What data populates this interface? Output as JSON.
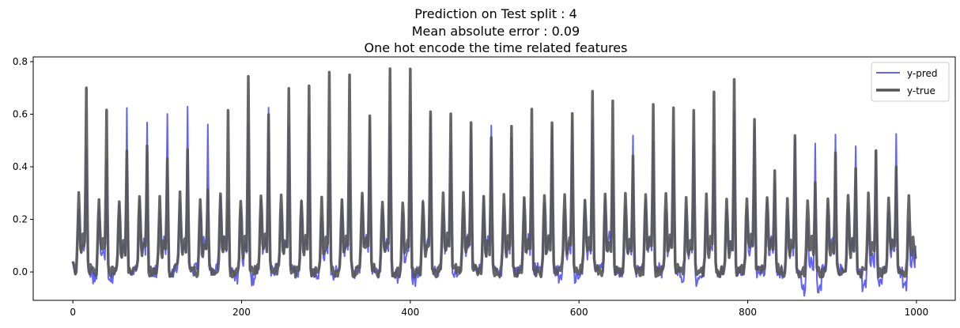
{
  "chart_data": {
    "type": "line",
    "title_lines": [
      "Prediction on Test split : 4",
      "Mean absolute error : 0.09",
      "One hot encode the time related features"
    ],
    "xlabel": "",
    "ylabel": "",
    "xlim": [
      -47,
      1046
    ],
    "ylim": [
      -0.108,
      0.818
    ],
    "xticks": [
      0,
      200,
      400,
      600,
      800,
      1000
    ],
    "yticks": [
      0.0,
      0.2,
      0.4,
      0.6,
      0.8
    ],
    "xtick_labels": [
      "0",
      "200",
      "400",
      "600",
      "800",
      "1000"
    ],
    "ytick_labels": [
      "0.0",
      "0.2",
      "0.4",
      "0.6",
      "0.8"
    ],
    "grid": false,
    "legend_position": "top-right",
    "n_points": 1000,
    "period_points": 24,
    "series": [
      {
        "name": "y-pred",
        "color": "#6464f0",
        "stroke_width": 2,
        "start_value": 0.04,
        "end_value": 0.1,
        "daily_peaks": [
          0.47,
          0.41,
          0.59,
          0.56,
          0.59,
          0.6,
          0.54,
          0.26,
          0.54,
          0.61,
          0.54,
          0.58,
          0.44,
          0.43,
          0.57,
          0.54,
          0.59,
          0.59,
          0.5,
          0.53,
          0.53,
          0.52,
          0.4,
          0.55,
          0.58,
          0.55,
          0.42,
          0.53,
          0.49,
          0.5,
          0.47,
          0.48,
          0.59,
          0.55,
          0.36,
          0.5,
          0.48,
          0.52,
          0.49,
          0.43,
          0.52,
          0.45,
          0.49,
          0.45,
          0.49,
          0.53,
          0.47,
          0.52
        ],
        "daily_troughs": [
          0.0,
          -0.02,
          0.0,
          0.0,
          0.0,
          0.01,
          0.01,
          0.02,
          -0.03,
          0.0,
          0.01,
          0.0,
          -0.02,
          0.0,
          0.01,
          0.0,
          -0.03,
          0.0,
          0.0,
          0.01,
          0.01,
          0.0,
          0.01,
          0.0,
          -0.02,
          0.0,
          0.01,
          0.0,
          0.02,
          0.0,
          -0.03,
          0.0,
          0.0,
          0.0,
          0.0,
          0.0,
          -0.07,
          0.01,
          0.0,
          -0.05,
          0.0,
          -0.06,
          0.0,
          0.0,
          -0.03,
          0.0,
          0.0,
          0.0
        ],
        "secondary_peak": 0.25,
        "noise_amplitude": 0.05
      },
      {
        "name": "y-true",
        "color": "#555555",
        "stroke_width": 3.5,
        "start_value": 0.04,
        "end_value": 0.05,
        "daily_peaks": [
          0.68,
          0.6,
          0.44,
          0.46,
          0.43,
          0.47,
          0.3,
          0.61,
          0.74,
          0.58,
          0.69,
          0.68,
          0.75,
          0.76,
          0.58,
          0.76,
          0.78,
          0.62,
          0.61,
          0.55,
          0.51,
          0.56,
          0.6,
          0.57,
          0.6,
          0.69,
          0.64,
          0.44,
          0.64,
          0.62,
          0.62,
          0.67,
          0.71,
          0.58,
          0.39,
          0.52,
          0.35,
          0.43,
          0.4,
          0.45,
          0.39,
          0.36,
          0.32,
          0.34,
          0.41,
          0.31,
          0.39,
          0.33
        ],
        "daily_troughs": [
          0.01,
          0.0,
          0.0,
          0.0,
          0.0,
          0.01,
          0.0,
          0.0,
          0.0,
          0.01,
          0.01,
          0.0,
          0.0,
          0.0,
          0.01,
          0.0,
          0.0,
          0.0,
          0.01,
          0.01,
          0.0,
          0.0,
          0.0,
          0.0,
          0.01,
          0.01,
          0.0,
          0.0,
          0.0,
          0.01,
          0.0,
          0.0,
          0.0,
          0.01,
          0.01,
          0.0,
          0.0,
          0.0,
          0.0,
          0.0,
          0.01,
          0.0,
          0.0,
          0.01,
          0.0,
          0.0,
          0.0,
          0.01
        ],
        "secondary_peak": 0.28,
        "noise_amplitude": 0.04
      }
    ]
  }
}
